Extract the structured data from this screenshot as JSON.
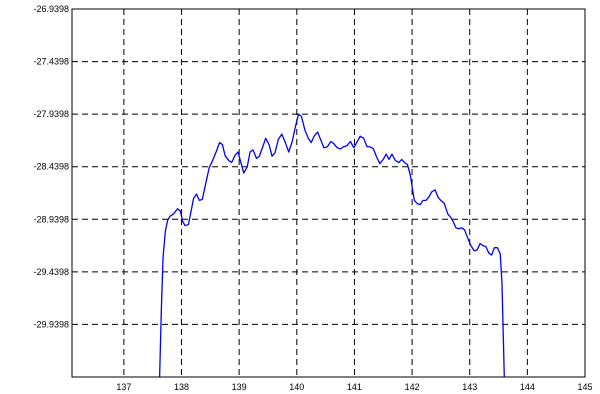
{
  "chart_data": {
    "type": "line",
    "title": "",
    "xlabel": "",
    "ylabel": "",
    "xlim": [
      136.1,
      145
    ],
    "ylim": [
      -30.4398,
      -26.9398
    ],
    "grid": true,
    "x_ticks": [
      137,
      138,
      139,
      140,
      141,
      142,
      143,
      144,
      145
    ],
    "x_tick_labels": [
      "137",
      "138",
      "139",
      "140",
      "141",
      "142",
      "143",
      "144",
      "145"
    ],
    "y_ticks": [
      -26.9398,
      -27.4398,
      -27.9398,
      -28.4398,
      -28.9398,
      -29.4398,
      -29.9398
    ],
    "y_tick_labels": [
      "-26.9398",
      "-27.4398",
      "-27.9398",
      "-28.4398",
      "-28.9398",
      "-29.4398",
      "-29.9398"
    ],
    "series": [
      {
        "color": "#0000ff",
        "x": [
          137.62,
          137.65,
          137.68,
          137.72,
          137.76,
          137.8,
          137.86,
          137.93,
          137.98,
          138.02,
          138.06,
          138.12,
          138.17,
          138.21,
          138.26,
          138.31,
          138.36,
          138.42,
          138.48,
          138.54,
          138.6,
          138.66,
          138.71,
          138.76,
          138.82,
          138.87,
          138.93,
          138.98,
          139.03,
          139.08,
          139.14,
          139.19,
          139.24,
          139.3,
          139.35,
          139.41,
          139.46,
          139.52,
          139.57,
          139.62,
          139.68,
          139.74,
          139.8,
          139.86,
          139.92,
          139.98,
          140.03,
          140.08,
          140.14,
          140.2,
          140.25,
          140.3,
          140.36,
          140.42,
          140.47,
          140.53,
          140.59,
          140.64,
          140.7,
          140.76,
          140.81,
          140.87,
          140.93,
          140.99,
          141.05,
          141.1,
          141.16,
          141.22,
          141.27,
          141.33,
          141.38,
          141.44,
          141.5,
          141.55,
          141.6,
          141.65,
          141.71,
          141.77,
          141.82,
          141.87,
          141.92,
          141.97,
          142.0,
          142.04,
          142.09,
          142.14,
          142.19,
          142.24,
          142.29,
          142.34,
          142.4,
          142.45,
          142.5,
          142.56,
          142.62,
          142.67,
          142.72,
          142.76,
          142.81,
          142.86,
          142.91,
          142.96,
          143.02,
          143.08,
          143.13,
          143.18,
          143.23,
          143.28,
          143.33,
          143.38,
          143.43,
          143.48,
          143.53,
          143.56,
          143.58,
          143.6
        ],
        "y": [
          -30.4398,
          -29.8,
          -29.3,
          -29.05,
          -28.95,
          -28.91,
          -28.89,
          -28.84,
          -28.86,
          -28.96,
          -29.0,
          -28.99,
          -28.85,
          -28.74,
          -28.7,
          -28.76,
          -28.75,
          -28.6,
          -28.45,
          -28.38,
          -28.3,
          -28.21,
          -28.23,
          -28.34,
          -28.38,
          -28.4,
          -28.33,
          -28.3,
          -28.4,
          -28.5,
          -28.44,
          -28.3,
          -28.28,
          -28.36,
          -28.34,
          -28.25,
          -28.17,
          -28.23,
          -28.34,
          -28.31,
          -28.18,
          -28.13,
          -28.21,
          -28.3,
          -28.2,
          -28.05,
          -27.94,
          -27.96,
          -28.09,
          -28.17,
          -28.21,
          -28.15,
          -28.11,
          -28.19,
          -28.26,
          -28.25,
          -28.2,
          -28.22,
          -28.26,
          -28.27,
          -28.25,
          -28.24,
          -28.2,
          -28.26,
          -28.2,
          -28.15,
          -28.17,
          -28.25,
          -28.25,
          -28.27,
          -28.34,
          -28.41,
          -28.37,
          -28.32,
          -28.37,
          -28.32,
          -28.38,
          -28.4,
          -28.37,
          -28.4,
          -28.42,
          -28.52,
          -28.63,
          -28.76,
          -28.79,
          -28.8,
          -28.76,
          -28.76,
          -28.73,
          -28.68,
          -28.66,
          -28.73,
          -28.76,
          -28.79,
          -28.89,
          -28.92,
          -28.97,
          -29.02,
          -29.03,
          -29.02,
          -29.04,
          -29.11,
          -29.19,
          -29.24,
          -29.23,
          -29.17,
          -29.19,
          -29.2,
          -29.26,
          -29.28,
          -29.21,
          -29.21,
          -29.27,
          -29.55,
          -30.0,
          -30.4398
        ]
      }
    ]
  }
}
